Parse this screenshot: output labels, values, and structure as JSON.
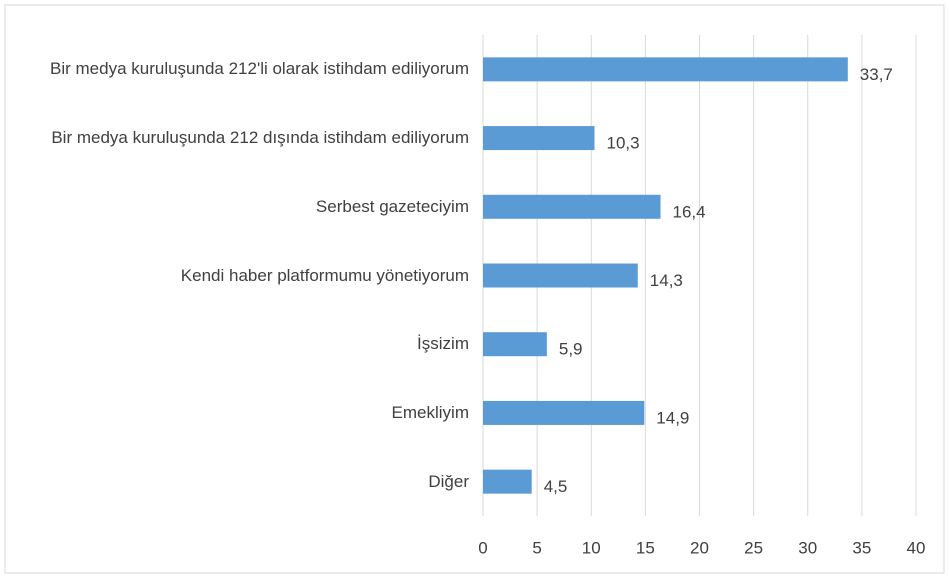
{
  "chart_data": {
    "type": "bar",
    "orientation": "horizontal",
    "categories": [
      "Bir medya kuruluşunda 212'li olarak istihdam ediliyorum",
      "Bir medya kuruluşunda 212 dışında istihdam ediliyorum",
      "Serbest gazeteciyim",
      "Kendi haber platformumu yönetiyorum",
      "İşsizim",
      "Emekliyim",
      "Diğer"
    ],
    "values": [
      33.7,
      10.3,
      16.4,
      14.3,
      5.9,
      14.9,
      4.5
    ],
    "value_labels": [
      "33,7",
      "10,3",
      "16,4",
      "14,3",
      "5,9",
      "14,9",
      "4,5"
    ],
    "color": "#5b9bd5",
    "xlim": [
      0,
      40
    ],
    "xticks": [
      0,
      5,
      10,
      15,
      20,
      25,
      30,
      35,
      40
    ],
    "grid": true
  }
}
